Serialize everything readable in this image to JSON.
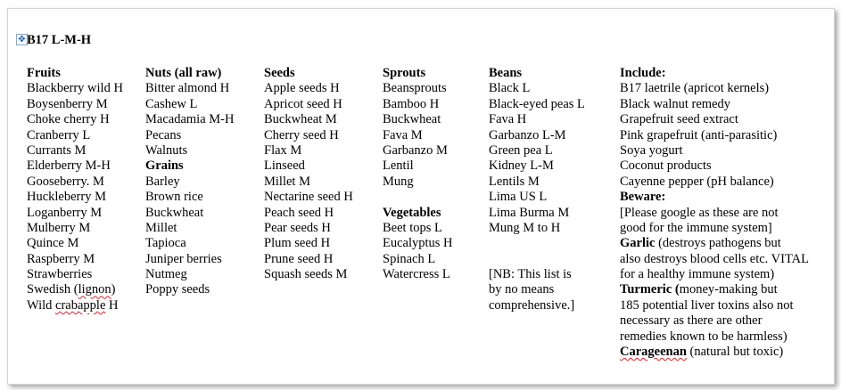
{
  "document": {
    "title": "B17 L-M-H",
    "columns": [
      {
        "lines": [
          {
            "b": "Fruits"
          },
          {
            "t": "Blackberry wild H"
          },
          {
            "t": "Boysenberry M"
          },
          {
            "t": "Choke cherry H"
          },
          {
            "t": "Cranberry L"
          },
          {
            "t": "Currants M"
          },
          {
            "t": "Elderberry M-H"
          },
          {
            "t": "Gooseberry. M"
          },
          {
            "t": "Huckleberry M"
          },
          {
            "t": "Loganberry M"
          },
          {
            "t": "Mulberry M"
          },
          {
            "t": "Quince M"
          },
          {
            "t": "Raspberry M"
          },
          {
            "t": "Strawberries"
          },
          {
            "t": "Swedish (",
            "s": "lignon",
            "t2": ")"
          },
          {
            "t": "Wild ",
            "s": "crabapple",
            "t2": " H"
          }
        ]
      },
      {
        "lines": [
          {
            "b": "Nuts (all raw)"
          },
          {
            "t": "Bitter almond H"
          },
          {
            "t": "Cashew L"
          },
          {
            "t": "Macadamia M-H"
          },
          {
            "t": "Pecans"
          },
          {
            "t": "Walnuts"
          },
          {
            "b": "Grains"
          },
          {
            "t": "Barley"
          },
          {
            "t": "Brown rice"
          },
          {
            "t": "Buckwheat"
          },
          {
            "t": "Millet"
          },
          {
            "t": "Tapioca"
          },
          {
            "t": "Juniper berries"
          },
          {
            "t": "Nutmeg"
          },
          {
            "t": "Poppy seeds"
          }
        ]
      },
      {
        "lines": [
          {
            "b": "Seeds"
          },
          {
            "t": "Apple seeds H"
          },
          {
            "t": "Apricot seed H"
          },
          {
            "t": "Buckwheat M"
          },
          {
            "t": "Cherry seed H"
          },
          {
            "t": "Flax M"
          },
          {
            "t": "Linseed"
          },
          {
            "t": "Millet M"
          },
          {
            "t": "Nectarine seed H"
          },
          {
            "t": "Peach seed H"
          },
          {
            "t": "Pear seeds H"
          },
          {
            "t": "Plum seed H"
          },
          {
            "t": "Prune seed H"
          },
          {
            "t": "Squash seeds M"
          }
        ]
      },
      {
        "lines": [
          {
            "b": "Sprouts"
          },
          {
            "t": "Beansprouts"
          },
          {
            "t": "Bamboo H"
          },
          {
            "t": "Buckwheat"
          },
          {
            "t": "Fava M"
          },
          {
            "t": "Garbanzo M"
          },
          {
            "t": "Lentil"
          },
          {
            "t": "Mung"
          },
          {},
          {
            "b": "Vegetables"
          },
          {
            "t": "Beet tops L"
          },
          {
            "t": "Eucalyptus H"
          },
          {
            "t": "Spinach L"
          },
          {
            "t": "Watercress L"
          }
        ]
      },
      {
        "lines": [
          {
            "b": "Beans"
          },
          {
            "t": "Black L"
          },
          {
            "t": "Black-eyed peas L"
          },
          {
            "t": "Fava H"
          },
          {
            "t": "Garbanzo L-M"
          },
          {
            "t": "Green pea L"
          },
          {
            "t": "Kidney L-M"
          },
          {
            "t": "Lentils M"
          },
          {
            "t": "Lima US L"
          },
          {
            "t": "Lima Burma M"
          },
          {
            "t": "Mung M to H"
          },
          {},
          {},
          {
            "t": "[NB: This list is"
          },
          {
            "t": "by no means"
          },
          {
            "t": "comprehensive.]"
          }
        ]
      },
      {
        "lines": [
          {
            "b": "Include:"
          },
          {
            "t": "B17 laetrile (apricot kernels)"
          },
          {
            "t": "Black walnut remedy"
          },
          {
            "t": "Grapefruit seed extract"
          },
          {
            "t": "Pink grapefruit (anti-parasitic)"
          },
          {
            "t": "Soya yogurt"
          },
          {
            "t": "Coconut products"
          },
          {
            "t": "Cayenne pepper (pH balance)"
          },
          {
            "b": "Beware:"
          },
          {
            "t": "[Please google as these are not"
          },
          {
            "t": "good for the immune system]"
          },
          {
            "b": "Garlic",
            "t": " (destroys pathogens but"
          },
          {
            "t": "also destroys blood cells etc. VITAL"
          },
          {
            "t": "for a healthy immune system)"
          },
          {
            "b": "Turmeric (",
            "t": "money-making but"
          },
          {
            "t": "185 potential liver toxins also not"
          },
          {
            "t": "necessary as there are other"
          },
          {
            "t": "remedies known to be harmless)"
          },
          {
            "sb": "Carageenan",
            "t": " (natural but toxic)"
          }
        ]
      }
    ]
  }
}
